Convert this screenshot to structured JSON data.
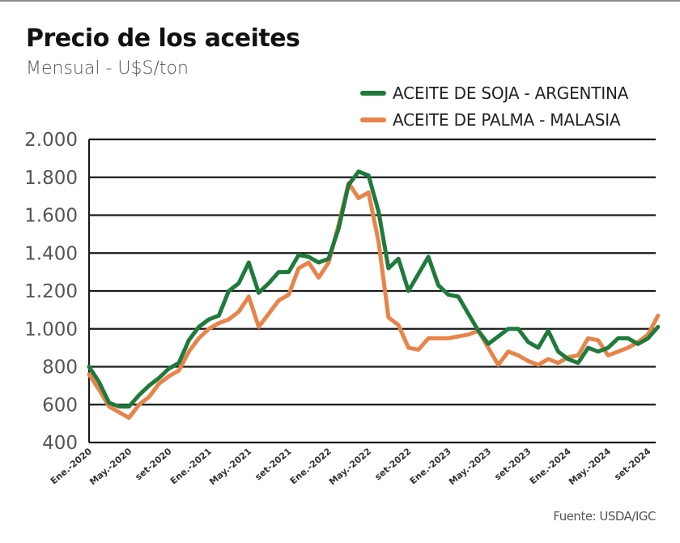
{
  "header": {
    "title": "Precio de los aceites",
    "subtitle": "Mensual - U$S/ton"
  },
  "legend": [
    {
      "label": "ACEITE DE SOJA - ARGENTINA",
      "color": "#1f7a3c"
    },
    {
      "label": "ACEITE DE PALMA - MALASIA",
      "color": "#e8844a"
    }
  ],
  "source": "Fuente: USDA/IGC",
  "chart_data": {
    "type": "line",
    "title": "Precio de los aceites",
    "subtitle": "Mensual - U$S/ton",
    "xlabel": "",
    "ylabel": "U$S/ton",
    "ylim": [
      400,
      2000
    ],
    "yticks": [
      400,
      600,
      800,
      1000,
      1200,
      1400,
      1600,
      1800,
      2000
    ],
    "ytick_labels": [
      "400",
      "600",
      "800",
      "1.000",
      "1.200",
      "1.400",
      "1.600",
      "1.800",
      "2.000"
    ],
    "grid": "horizontal",
    "legend_position": "top-right",
    "x": [
      "2020-01",
      "2020-02",
      "2020-03",
      "2020-04",
      "2020-05",
      "2020-06",
      "2020-07",
      "2020-08",
      "2020-09",
      "2020-10",
      "2020-11",
      "2020-12",
      "2021-01",
      "2021-02",
      "2021-03",
      "2021-04",
      "2021-05",
      "2021-06",
      "2021-07",
      "2021-08",
      "2021-09",
      "2021-10",
      "2021-11",
      "2021-12",
      "2022-01",
      "2022-02",
      "2022-03",
      "2022-04",
      "2022-05",
      "2022-06",
      "2022-07",
      "2022-08",
      "2022-09",
      "2022-10",
      "2022-11",
      "2022-12",
      "2023-01",
      "2023-02",
      "2023-03",
      "2023-04",
      "2023-05",
      "2023-06",
      "2023-07",
      "2023-08",
      "2023-09",
      "2023-10",
      "2023-11",
      "2023-12",
      "2024-01",
      "2024-02",
      "2024-03",
      "2024-04",
      "2024-05",
      "2024-06",
      "2024-07",
      "2024-08",
      "2024-09",
      "2024-10"
    ],
    "xtick_labels": [
      {
        "index": 0,
        "label": "Ene.-2020"
      },
      {
        "index": 4,
        "label": "May.-2020"
      },
      {
        "index": 8,
        "label": "set-2020"
      },
      {
        "index": 12,
        "label": "Ene.-2021"
      },
      {
        "index": 16,
        "label": "May.-2021"
      },
      {
        "index": 20,
        "label": "set-2021"
      },
      {
        "index": 24,
        "label": "Ene.-2022"
      },
      {
        "index": 28,
        "label": "May.-2022"
      },
      {
        "index": 32,
        "label": "set-2022"
      },
      {
        "index": 36,
        "label": "Ene.-2023"
      },
      {
        "index": 40,
        "label": "May.-2023"
      },
      {
        "index": 44,
        "label": "set-2023"
      },
      {
        "index": 48,
        "label": "Ene.-2024"
      },
      {
        "index": 52,
        "label": "May.-2024"
      },
      {
        "index": 56,
        "label": "set-2024"
      }
    ],
    "series": [
      {
        "name": "ACEITE DE SOJA - ARGENTINA",
        "color": "#1f7a3c",
        "values": [
          800,
          720,
          610,
          590,
          590,
          650,
          700,
          740,
          790,
          820,
          940,
          1010,
          1050,
          1070,
          1200,
          1240,
          1350,
          1190,
          1240,
          1300,
          1300,
          1390,
          1380,
          1350,
          1370,
          1530,
          1760,
          1830,
          1810,
          1620,
          1320,
          1370,
          1200,
          1290,
          1380,
          1230,
          1180,
          1170,
          1080,
          990,
          920,
          960,
          1000,
          1000,
          930,
          900,
          990,
          880,
          840,
          820,
          900,
          880,
          900,
          950,
          950,
          920,
          950,
          1010
        ]
      },
      {
        "name": "ACEITE DE PALMA - MALASIA",
        "color": "#e8844a",
        "values": [
          760,
          680,
          590,
          560,
          530,
          600,
          640,
          710,
          750,
          780,
          880,
          950,
          1000,
          1030,
          1050,
          1090,
          1170,
          1010,
          1080,
          1150,
          1180,
          1320,
          1350,
          1270,
          1350,
          1550,
          1770,
          1690,
          1720,
          1460,
          1060,
          1020,
          900,
          890,
          950,
          950,
          950,
          960,
          970,
          990,
          900,
          810,
          880,
          860,
          830,
          810,
          840,
          820,
          850,
          860,
          950,
          940,
          860,
          880,
          900,
          930,
          970,
          1070
        ]
      }
    ]
  }
}
